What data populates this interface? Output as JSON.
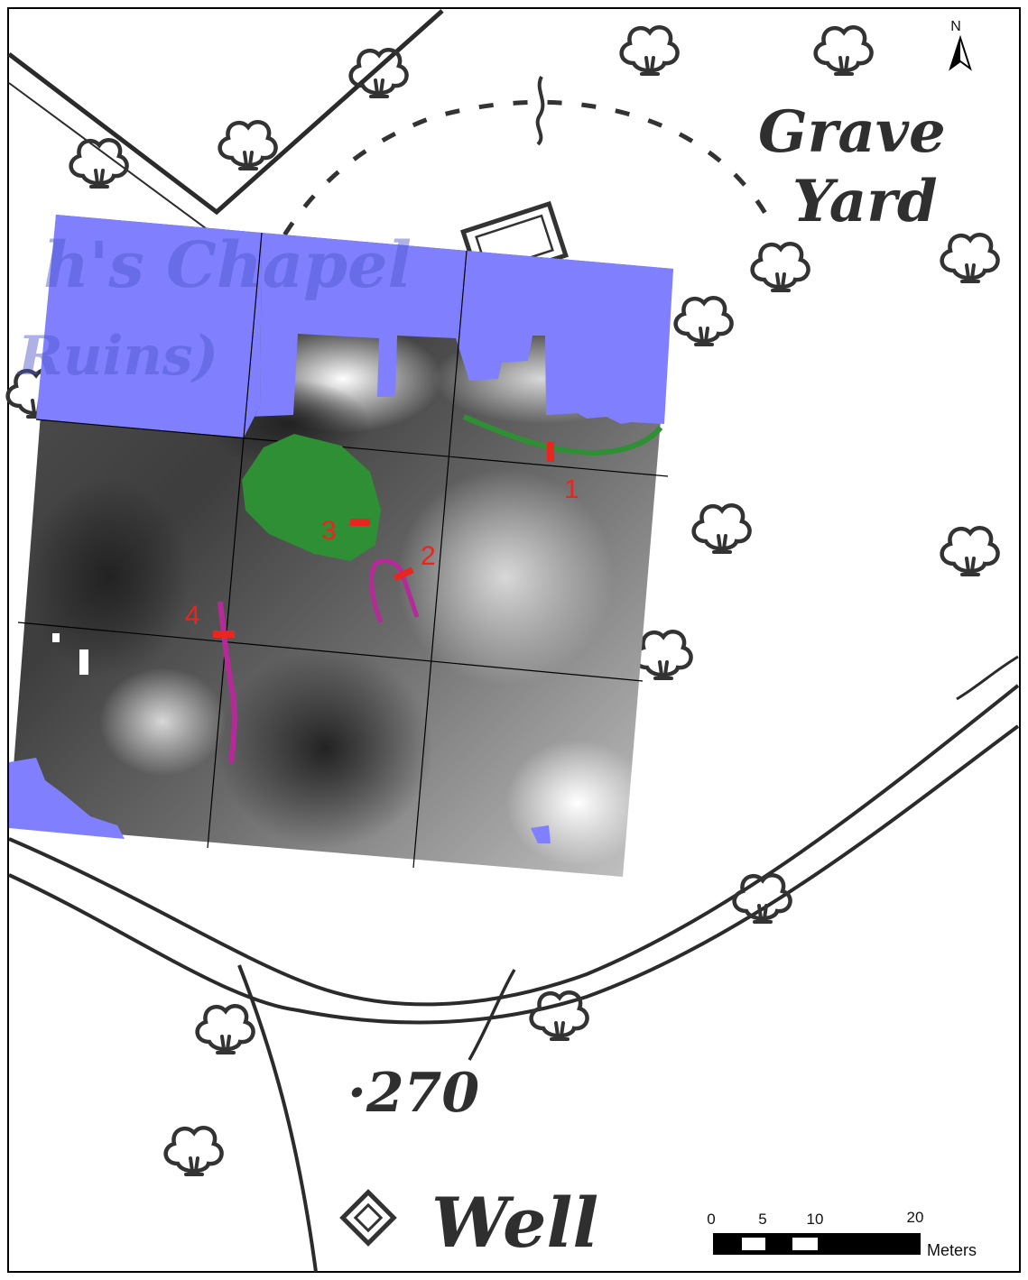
{
  "north_arrow": {
    "label": "N"
  },
  "map_labels": {
    "grave": "Grave",
    "yard": "Yard",
    "chapel": "h's Chapel",
    "ruins": "Ruins)",
    "spot_height": "·270",
    "well": "Well"
  },
  "features": [
    {
      "id": "1",
      "label": "1",
      "color": "#2f8f34"
    },
    {
      "id": "2",
      "label": "2",
      "color": "#b52a98"
    },
    {
      "id": "3",
      "label": "3",
      "color": "#2f8f34"
    },
    {
      "id": "4",
      "label": "4",
      "color": "#b52a98"
    }
  ],
  "colors": {
    "survey_blank": "#8080ff",
    "trench_marker": "#e8261f",
    "green_feature": "#2f8f34",
    "magenta_feature": "#b52a98"
  },
  "scale_bar": {
    "ticks": [
      "0",
      "5",
      "10",
      "20"
    ],
    "unit": "Meters"
  }
}
